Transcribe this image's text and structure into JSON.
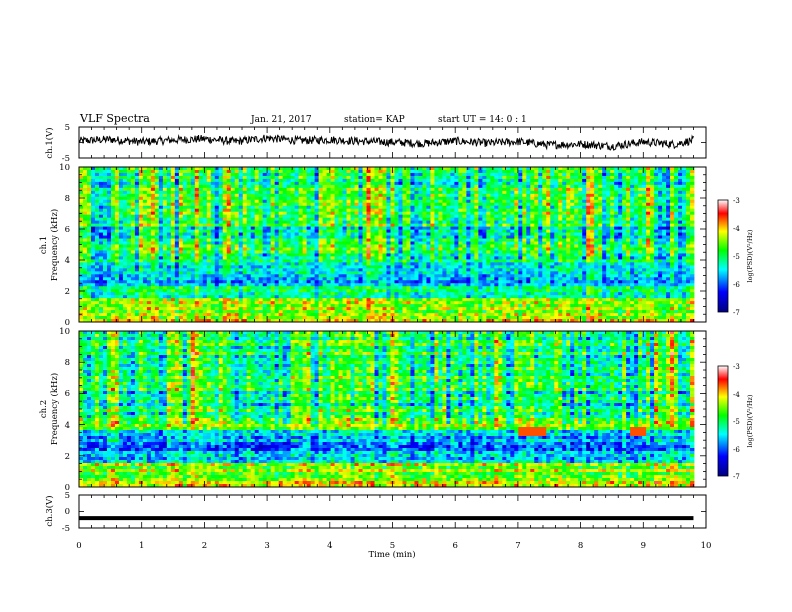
{
  "header": {
    "title": "VLF Spectra",
    "date": "Jan. 21, 2017",
    "station": "station= KAP",
    "start": "start  UT =   14: 0  : 1"
  },
  "colors": {
    "colormap": [
      "#000080",
      "#0000ff",
      "#00ffff",
      "#00ff00",
      "#ffff00",
      "#ff0000",
      "#ffffff"
    ],
    "trace": "#000000",
    "axes": "#000000"
  },
  "chart_data": [
    {
      "type": "line",
      "name": "ch1-waveform",
      "ylabel": "ch.1(V)",
      "ylim": [
        -5,
        5
      ],
      "yticks": [
        "5",
        "-5"
      ],
      "xlim": [
        0,
        10
      ],
      "x": [
        0,
        0.5,
        1,
        1.5,
        2,
        2.5,
        3,
        3.5,
        4,
        4.5,
        5,
        5.5,
        6,
        6.5,
        7,
        7.5,
        8,
        8.5,
        9,
        9.5,
        9.8
      ],
      "y": [
        0.5,
        1.0,
        0.2,
        0.8,
        1.2,
        0.3,
        1.5,
        0.6,
        0.9,
        0.4,
        0.1,
        -0.3,
        0.5,
        -0.2,
        0.3,
        -0.8,
        -0.5,
        -1.2,
        0.2,
        -0.6,
        0.8
      ]
    },
    {
      "type": "heatmap",
      "name": "ch1-spectrogram",
      "ylabel_top": "ch.1",
      "ylabel": "Frequency (kHz)",
      "ylim": [
        0,
        10
      ],
      "yticks": [
        "10",
        "8",
        "6",
        "4",
        "2",
        "0"
      ],
      "xlim": [
        0,
        10
      ],
      "colorbar": {
        "label": "log(PSD)(V²/Hz)",
        "range": [
          -7,
          -3
        ],
        "ticks": [
          "-3",
          "-4",
          "-5",
          "-6",
          "-7"
        ]
      }
    },
    {
      "type": "heatmap",
      "name": "ch2-spectrogram",
      "ylabel_top": "ch.2",
      "ylabel": "Frequency (kHz)",
      "ylim": [
        0,
        10
      ],
      "yticks": [
        "10",
        "8",
        "6",
        "4",
        "2",
        "0"
      ],
      "xlim": [
        0,
        10
      ],
      "colorbar": {
        "label": "log(PSD)(V²/Hz)",
        "range": [
          -7,
          -3
        ],
        "ticks": [
          "-3",
          "-4",
          "-5",
          "-6",
          "-7"
        ]
      }
    },
    {
      "type": "line",
      "name": "ch3-waveform",
      "ylabel": "ch.3(V)",
      "ylim": [
        -5,
        5
      ],
      "yticks": [
        "5",
        "0",
        "-5"
      ],
      "xlim": [
        0,
        10
      ],
      "x": [
        0,
        9.8
      ],
      "y": [
        -2,
        -2
      ]
    }
  ],
  "xaxis": {
    "label": "Time (min)",
    "ticks": [
      "0",
      "1",
      "2",
      "3",
      "4",
      "5",
      "6",
      "7",
      "8",
      "9",
      "10"
    ]
  }
}
